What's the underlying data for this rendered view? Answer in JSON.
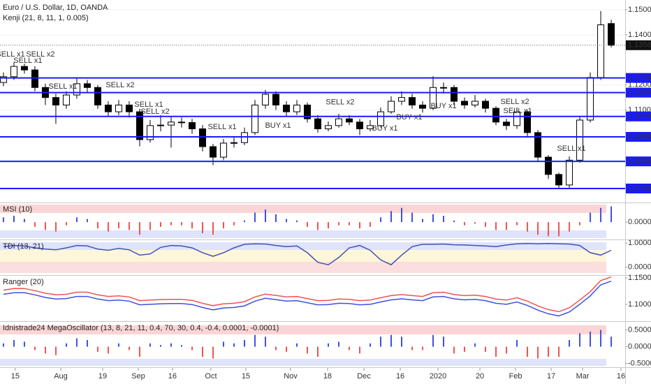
{
  "chart_data": [
    {
      "type": "candlestick",
      "title": "Euro / U.S. Dollar, 1D, OANDA",
      "subtitle": "Kenji (21, 8, 11, 1, 0.005)",
      "candles": {
        "open": [
          1.121,
          1.1233,
          1.1274,
          1.126,
          1.119,
          1.115,
          1.112,
          1.116,
          1.1205,
          1.119,
          1.112,
          1.1093,
          1.112,
          1.1093,
          1.0982,
          1.1038,
          1.104,
          1.1052,
          1.105,
          1.1025,
          1.0954,
          1.0912,
          1.0968,
          1.097,
          1.101,
          1.112,
          1.1163,
          1.112,
          1.1093,
          1.112,
          1.1065,
          1.1025,
          1.1038,
          1.1065,
          1.1052,
          1.1025,
          1.1038,
          1.1093,
          1.1135,
          1.115,
          1.112,
          1.1107,
          1.119,
          1.119,
          1.1135,
          1.112,
          1.1135,
          1.1107,
          1.1052,
          1.1038,
          1.1093,
          1.101,
          1.0912,
          1.0843,
          1.0801,
          1.09,
          1.106,
          1.123,
          1.1445
        ],
        "high": [
          1.125,
          1.129,
          1.1285,
          1.1275,
          1.1205,
          1.1165,
          1.1175,
          1.123,
          1.122,
          1.12,
          1.1135,
          1.114,
          1.1135,
          1.1105,
          1.106,
          1.108,
          1.1075,
          1.107,
          1.1065,
          1.104,
          1.0965,
          1.0985,
          1.099,
          1.103,
          1.114,
          1.118,
          1.1175,
          1.1135,
          1.114,
          1.113,
          1.108,
          1.1055,
          1.1085,
          1.108,
          1.1065,
          1.106,
          1.111,
          1.1155,
          1.1175,
          1.1165,
          1.1135,
          1.1235,
          1.121,
          1.12,
          1.115,
          1.116,
          1.1145,
          1.1115,
          1.1065,
          1.111,
          1.11,
          1.102,
          1.092,
          1.085,
          1.0915,
          1.1075,
          1.125,
          1.1495,
          1.146
        ],
        "low": [
          1.1195,
          1.122,
          1.1245,
          1.1175,
          1.112,
          1.1045,
          1.1105,
          1.1145,
          1.117,
          1.1105,
          1.1075,
          1.108,
          1.107,
          1.0955,
          1.097,
          1.1015,
          1.095,
          1.103,
          1.1005,
          1.0935,
          1.088,
          1.09,
          1.095,
          1.096,
          1.1,
          1.1105,
          1.11,
          1.1075,
          1.108,
          1.105,
          1.101,
          1.1015,
          1.103,
          1.104,
          1.1,
          1.1015,
          1.103,
          1.1085,
          1.112,
          1.1105,
          1.109,
          1.11,
          1.1165,
          1.112,
          1.1105,
          1.111,
          1.109,
          1.104,
          1.102,
          1.1025,
          1.0995,
          1.0895,
          1.0825,
          1.0785,
          1.079,
          1.089,
          1.105,
          1.122,
          1.135
        ],
        "close": [
          1.1233,
          1.1274,
          1.126,
          1.119,
          1.115,
          1.112,
          1.116,
          1.1205,
          1.119,
          1.112,
          1.1093,
          1.112,
          1.1093,
          1.0982,
          1.1038,
          1.104,
          1.1052,
          1.105,
          1.1025,
          1.0954,
          1.0912,
          1.0968,
          1.097,
          1.101,
          1.112,
          1.1163,
          1.112,
          1.1093,
          1.112,
          1.1065,
          1.1025,
          1.1038,
          1.1065,
          1.1052,
          1.1025,
          1.1038,
          1.1093,
          1.1135,
          1.115,
          1.112,
          1.1107,
          1.119,
          1.119,
          1.1135,
          1.112,
          1.1135,
          1.1107,
          1.1052,
          1.1038,
          1.1093,
          1.101,
          1.0912,
          1.0843,
          1.0801,
          1.09,
          1.106,
          1.123,
          1.144,
          1.13586
        ]
      },
      "up_color": "#ffffff",
      "down_color": "#000000",
      "ylim": [
        1.07312,
        1.1539
      ],
      "yticks": [
        {
          "value": 1.15,
          "label": "1.15000"
        },
        {
          "value": 1.14,
          "label": "1.14000"
        },
        {
          "value": 1.12,
          "label": "1.12000"
        },
        {
          "value": 1.11,
          "label": "1.11000"
        }
      ],
      "grid": true,
      "xlim": [
        -0.33,
        59.33
      ],
      "xticks": [
        {
          "value": 1.13,
          "label": "15"
        },
        {
          "value": 5.47,
          "label": "Aug"
        },
        {
          "value": 9.47,
          "label": "19"
        },
        {
          "value": 12.87,
          "label": "Sep"
        },
        {
          "value": 16.13,
          "label": "16"
        },
        {
          "value": 19.8,
          "label": "Oct"
        },
        {
          "value": 23.13,
          "label": "15"
        },
        {
          "value": 27.4,
          "label": "Nov"
        },
        {
          "value": 30.93,
          "label": "18"
        },
        {
          "value": 34.4,
          "label": "Dec"
        },
        {
          "value": 37.87,
          "label": "16"
        },
        {
          "value": 41.47,
          "label": "2020"
        },
        {
          "value": 45.47,
          "label": "20"
        },
        {
          "value": 48.87,
          "label": "Feb"
        },
        {
          "value": 52.27,
          "label": "17"
        },
        {
          "value": 55.27,
          "label": "Mar"
        },
        {
          "value": 58.93,
          "label": "16"
        }
      ],
      "levels": [
        {
          "value": 1.1228,
          "label": "1.12280"
        },
        {
          "value": 1.11695,
          "label": "1.11695"
        },
        {
          "value": 1.10744,
          "label": "1.10744"
        },
        {
          "value": 1.0993,
          "label": "1.09930"
        },
        {
          "value": 1.08951,
          "label": "1.08951"
        },
        {
          "value": 1.07869,
          "label": "1.07869"
        }
      ],
      "level_color": "#1a1aff",
      "signals": [
        {
          "label": "SELL x1",
          "index": 0.67,
          "price": 1.1322,
          "color": "#f23645"
        },
        {
          "label": "SELL x1",
          "index": 2.33,
          "price": 1.1297,
          "color": "#f23645"
        },
        {
          "label": "SELL x2",
          "index": 3.53,
          "price": 1.1322,
          "color": "#f23645"
        },
        {
          "label": "SELL x1",
          "index": 5.67,
          "price": 1.1194,
          "color": "#f23645"
        },
        {
          "label": "SELL x2",
          "index": 11.13,
          "price": 1.1199,
          "color": "#f23645"
        },
        {
          "label": "SELL x1",
          "index": 13.87,
          "price": 1.1121,
          "color": "#f23645"
        },
        {
          "label": "SELL x2",
          "index": 14.47,
          "price": 1.1093,
          "color": "#f23645"
        },
        {
          "label": "SELL x1",
          "index": 20.87,
          "price": 1.1032,
          "color": "#f23645"
        },
        {
          "label": "BUY x1",
          "index": 26.2,
          "price": 1.1038,
          "color": "#5c6bc0"
        },
        {
          "label": "SELL x2",
          "index": 32.13,
          "price": 1.113,
          "color": "#f23645"
        },
        {
          "label": "BUY x1",
          "index": 36.4,
          "price": 1.1026,
          "color": "#5c6bc0"
        },
        {
          "label": "BUY x1",
          "index": 38.73,
          "price": 1.1071,
          "color": "#5c6bc0"
        },
        {
          "label": "BUY x1",
          "index": 42,
          "price": 1.1116,
          "color": "#5c6bc0"
        },
        {
          "label": "SELL x2",
          "index": 48.8,
          "price": 1.1132,
          "color": "#f23645"
        },
        {
          "label": "SELL x1",
          "index": 49.07,
          "price": 1.1096,
          "color": "#f23645"
        },
        {
          "label": "SELL x1",
          "index": 54.2,
          "price": 1.0946,
          "color": "#f23645"
        }
      ]
    },
    {
      "type": "bar",
      "title": "MSI (10)",
      "values": [
        0.3,
        0.4,
        0.2,
        -0.3,
        -0.5,
        -0.6,
        -0.2,
        0.3,
        0.2,
        -0.4,
        -0.6,
        -0.4,
        -0.5,
        -0.8,
        -0.5,
        -0.3,
        -0.2,
        -0.2,
        -0.4,
        -0.7,
        -0.8,
        -0.4,
        -0.2,
        0.1,
        0.6,
        0.8,
        0.5,
        0.2,
        0.1,
        -0.3,
        -0.5,
        -0.4,
        -0.2,
        -0.2,
        -0.4,
        -0.3,
        0.3,
        0.7,
        0.9,
        0.6,
        0.2,
        0.5,
        0.4,
        0.1,
        -0.2,
        -0.1,
        -0.3,
        -0.5,
        -0.5,
        -0.2,
        -0.6,
        -0.8,
        -0.9,
        -0.9,
        -0.6,
        -0.2,
        0.6,
        0.9,
        1.0
      ],
      "pos_color": "#3f51e0",
      "neg_color": "#ef5350",
      "ylim": [
        -1.1,
        1.2
      ],
      "yticks": [
        {
          "value": 0,
          "label": "0.00000"
        }
      ]
    },
    {
      "type": "line",
      "title": "TDI (13, 21)",
      "series": [
        {
          "color": "#3f51b5",
          "values": [
            0.85,
            0.9,
            0.88,
            0.8,
            0.75,
            0.72,
            0.8,
            0.9,
            0.88,
            0.75,
            0.7,
            0.78,
            0.72,
            0.5,
            0.55,
            0.82,
            0.9,
            0.88,
            0.8,
            0.6,
            0.45,
            0.6,
            0.8,
            0.95,
            0.97,
            0.96,
            0.9,
            0.85,
            0.88,
            0.6,
            0.2,
            0.1,
            0.4,
            0.8,
            0.9,
            0.7,
            0.3,
            0.1,
            0.5,
            0.85,
            0.95,
            0.95,
            0.96,
            0.93,
            0.92,
            0.9,
            0.88,
            0.85,
            0.92,
            0.97,
            0.98,
            0.97,
            0.98,
            0.97,
            0.96,
            0.9,
            0.6,
            0.5,
            0.7
          ]
        }
      ],
      "ylim": [
        -0.33,
        1.12
      ],
      "yticks": [
        {
          "value": 1,
          "label": "1.00000"
        },
        {
          "value": 0,
          "label": "0.00000"
        }
      ]
    },
    {
      "type": "line",
      "title": "Ranger (20)",
      "series": [
        {
          "color": "#ef5350",
          "values": [
            1.127,
            1.13,
            1.13,
            1.126,
            1.121,
            1.118,
            1.119,
            1.123,
            1.123,
            1.118,
            1.115,
            1.116,
            1.114,
            1.107,
            1.108,
            1.109,
            1.1095,
            1.1095,
            1.1075,
            1.102,
            1.0975,
            1.101,
            1.102,
            1.105,
            1.114,
            1.1195,
            1.117,
            1.114,
            1.115,
            1.111,
            1.107,
            1.1075,
            1.11,
            1.1095,
            1.107,
            1.108,
            1.1125,
            1.1165,
            1.1185,
            1.1165,
            1.115,
            1.122,
            1.123,
            1.1185,
            1.1165,
            1.1175,
            1.115,
            1.11,
            1.108,
            1.1125,
            1.106,
            1.097,
            1.09,
            1.086,
            1.0935,
            1.108,
            1.124,
            1.145,
            1.152
          ]
        },
        {
          "color": "#3f51e0",
          "values": [
            1.119,
            1.122,
            1.122,
            1.118,
            1.113,
            1.11,
            1.111,
            1.115,
            1.115,
            1.11,
            1.107,
            1.108,
            1.106,
            1.099,
            1.1,
            1.101,
            1.1015,
            1.1015,
            1.0995,
            1.094,
            1.0895,
            1.093,
            1.094,
            1.097,
            1.106,
            1.1115,
            1.109,
            1.106,
            1.107,
            1.103,
            1.099,
            1.0995,
            1.102,
            1.1015,
            1.099,
            1.1,
            1.1045,
            1.1085,
            1.1105,
            1.1085,
            1.107,
            1.114,
            1.115,
            1.1105,
            1.1085,
            1.1095,
            1.107,
            1.102,
            1.1,
            1.1045,
            1.098,
            1.089,
            1.082,
            1.078,
            1.0855,
            1.1,
            1.116,
            1.137,
            1.144
          ]
        }
      ],
      "ylim": [
        1.068,
        1.1542
      ],
      "yticks": [
        {
          "value": 1.15,
          "label": "1.15000"
        },
        {
          "value": 1.1,
          "label": "1.10000"
        }
      ]
    },
    {
      "type": "bar",
      "title": "Idnistrade24 MegaOscillator (13, 8, 21, 11, 0.4, 70, 30, 0.4, -0.4, 0.0001, -0.0001)",
      "values": [
        0.1,
        0.2,
        0.15,
        -0.1,
        -0.2,
        -0.25,
        0.1,
        0.25,
        0.2,
        -0.15,
        -0.2,
        0.1,
        -0.1,
        -0.3,
        0.1,
        0.05,
        0.1,
        0.05,
        -0.1,
        -0.3,
        -0.35,
        0.15,
        0.1,
        0.2,
        0.35,
        0.3,
        -0.1,
        -0.15,
        0.1,
        -0.2,
        -0.3,
        0.1,
        0.15,
        -0.1,
        -0.2,
        0.1,
        0.3,
        0.35,
        0.3,
        -0.1,
        -0.1,
        0.35,
        0.3,
        -0.2,
        -0.15,
        0.1,
        -0.15,
        -0.3,
        -0.2,
        0.2,
        -0.3,
        -0.35,
        -0.3,
        -0.3,
        0.2,
        0.4,
        0.45,
        0.5,
        0.3
      ],
      "pos_color": "#3f51e0",
      "neg_color": "#ef5350",
      "ylim": [
        -0.609,
        0.739
      ],
      "yticks": [
        {
          "value": 0.5,
          "label": "0.50000"
        },
        {
          "value": 0,
          "label": "0.00000"
        },
        {
          "value": -0.5,
          "label": "-0.50000"
        }
      ]
    }
  ]
}
